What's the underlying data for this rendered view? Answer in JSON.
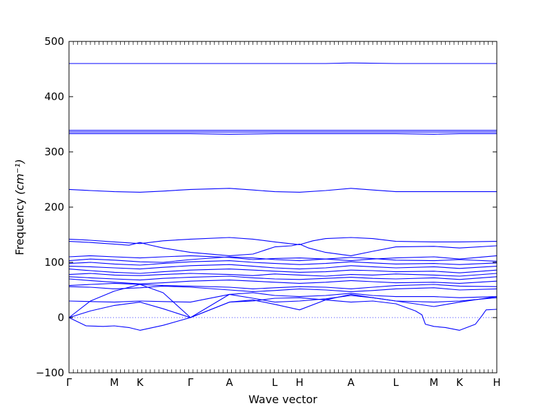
{
  "chart_data": {
    "type": "line",
    "title": "",
    "xlabel": "Wave vector",
    "ylabel": "Frequency",
    "ylabel_unit": "(cm⁻¹)",
    "ylim": [
      -100,
      500
    ],
    "yticks": [
      -100,
      0,
      100,
      200,
      300,
      400,
      500
    ],
    "xlim": [
      0,
      100
    ],
    "high_symmetry_points": [
      {
        "label": "Γ",
        "x": 0
      },
      {
        "label": "M",
        "x": 10.6
      },
      {
        "label": "K",
        "x": 16.6
      },
      {
        "label": "Γ",
        "x": 28.4
      },
      {
        "label": "A",
        "x": 37.5
      },
      {
        "label": "L",
        "x": 48.1
      },
      {
        "label": "H",
        "x": 53.9
      },
      {
        "label": "A",
        "x": 65.9
      },
      {
        "label": "L",
        "x": 76.4
      },
      {
        "label": "M",
        "x": 85.3
      },
      {
        "label": "K",
        "x": 91.3
      },
      {
        "label": "H",
        "x": 100
      }
    ],
    "zero_line": true,
    "line_color": "#0000ff",
    "series": [
      {
        "x": [
          0,
          5,
          10.6,
          16.6,
          22,
          28.4,
          37.5,
          48.1,
          53.9,
          60,
          65.9,
          76.4,
          80,
          82.5,
          85.3,
          91.3,
          95,
          97,
          100
        ],
        "y": [
          460,
          460,
          460,
          460,
          460,
          460,
          460,
          460,
          460,
          460,
          461,
          460,
          460,
          460,
          460,
          460,
          460,
          460,
          460
        ]
      },
      {
        "x": [
          0,
          10.6,
          16.6,
          28.4,
          37.5,
          48.1,
          53.9,
          65.9,
          76.4,
          85.3,
          91.3,
          100
        ],
        "y": [
          339,
          339,
          339,
          339,
          339,
          339,
          339,
          339,
          339,
          339,
          339,
          339
        ]
      },
      {
        "x": [
          0,
          10.6,
          16.6,
          28.4,
          37.5,
          48.1,
          53.9,
          65.9,
          76.4,
          85.3,
          91.3,
          100
        ],
        "y": [
          336,
          336,
          336,
          336,
          336,
          336,
          336,
          336,
          336,
          336,
          336,
          336
        ]
      },
      {
        "x": [
          0,
          10.6,
          16.6,
          28.4,
          37.5,
          48.1,
          53.9,
          65.9,
          76.4,
          85.3,
          91.3,
          100
        ],
        "y": [
          333,
          333,
          333,
          333,
          332,
          333,
          333,
          333,
          333,
          332,
          333,
          333
        ]
      },
      {
        "x": [
          0,
          5,
          10.6,
          16.6,
          22,
          28.4,
          37.5,
          43,
          48.1,
          53.9,
          60,
          65.9,
          71,
          76.4,
          85.3,
          91.3,
          100
        ],
        "y": [
          232,
          230,
          228,
          227,
          229,
          232,
          234,
          231,
          228,
          227,
          230,
          234,
          231,
          228,
          228,
          228,
          228
        ]
      },
      {
        "x": [
          0,
          5,
          10.6,
          16.6,
          22,
          28.4,
          37.5,
          43,
          48.1,
          53.9,
          57,
          60,
          65.9,
          71,
          76.4,
          85.3,
          91.3,
          100
        ],
        "y": [
          142,
          140,
          137,
          134,
          139,
          142,
          145,
          142,
          137,
          132,
          139,
          143,
          145,
          143,
          138,
          137,
          137,
          138
        ]
      },
      {
        "x": [
          0,
          5,
          10.6,
          14,
          16.6,
          18,
          22,
          28.4,
          37.5,
          43,
          48.1,
          52,
          53.9,
          56,
          60,
          65.9,
          71,
          76.4,
          85.3,
          91.3,
          100
        ],
        "y": [
          138,
          136,
          133,
          131,
          136,
          133,
          126,
          118,
          112,
          115,
          128,
          130,
          133,
          126,
          118,
          112,
          120,
          128,
          129,
          126,
          130
        ]
      },
      {
        "x": [
          0,
          5,
          10.6,
          16.6,
          22,
          28.4,
          37.5,
          43,
          48.1,
          53.9,
          60,
          65.9,
          71,
          76.4,
          85.3,
          91.3,
          100
        ],
        "y": [
          110,
          112,
          110,
          108,
          110,
          112,
          109,
          105,
          107,
          108,
          106,
          103,
          106,
          108,
          110,
          106,
          112
        ]
      },
      {
        "x": [
          0,
          5,
          10.6,
          16.6,
          22,
          28.4,
          37.5,
          43,
          48.1,
          53.9,
          60,
          65.9,
          71,
          76.4,
          85.3,
          91.3,
          100
        ],
        "y": [
          103,
          106,
          104,
          101,
          100,
          105,
          110,
          108,
          105,
          103,
          106,
          109,
          107,
          104,
          103,
          105,
          102
        ]
      },
      {
        "x": [
          0,
          5,
          10.6,
          16.6,
          22,
          28.4,
          37.5,
          43,
          48.1,
          53.9,
          60,
          65.9,
          71,
          76.4,
          85.3,
          91.3,
          100
        ],
        "y": [
          98,
          100,
          97,
          95,
          98,
          101,
          103,
          100,
          98,
          96,
          98,
          101,
          99,
          97,
          98,
          96,
          99
        ]
      },
      {
        "x": [
          0,
          5,
          10.6,
          16.6,
          22,
          28.4,
          37.5,
          43,
          48.1,
          53.9,
          60,
          65.9,
          71,
          76.4,
          85.3,
          91.3,
          100
        ],
        "y": [
          93,
          92,
          90,
          88,
          91,
          94,
          96,
          93,
          90,
          88,
          90,
          94,
          92,
          90,
          92,
          89,
          93
        ]
      },
      {
        "x": [
          0,
          5,
          10.6,
          16.6,
          22,
          28.4,
          37.5,
          43,
          48.1,
          53.9,
          60,
          65.9,
          71,
          76.4,
          85.3,
          91.3,
          100
        ],
        "y": [
          88,
          85,
          82,
          80,
          83,
          86,
          88,
          86,
          84,
          82,
          83,
          86,
          85,
          83,
          84,
          81,
          86
        ]
      },
      {
        "x": [
          0,
          5,
          10.6,
          16.6,
          22,
          28.4,
          37.5,
          43,
          48.1,
          53.9,
          60,
          65.9,
          71,
          76.4,
          85.3,
          91.3,
          100
        ],
        "y": [
          78,
          80,
          77,
          76,
          78,
          80,
          78,
          76,
          79,
          77,
          75,
          78,
          77,
          79,
          77,
          75,
          80
        ]
      },
      {
        "x": [
          0,
          5,
          10.6,
          16.6,
          22,
          28.4,
          37.5,
          43,
          48.1,
          53.9,
          60,
          65.9,
          71,
          76.4,
          85.3,
          91.3,
          100
        ],
        "y": [
          74,
          72,
          70,
          68,
          71,
          73,
          75,
          72,
          70,
          69,
          71,
          73,
          71,
          70,
          72,
          69,
          74
        ]
      },
      {
        "x": [
          0,
          5,
          10.6,
          16.6,
          22,
          28.4,
          37.5,
          43,
          48.1,
          53.9,
          60,
          65.9,
          71,
          76.4,
          85.3,
          91.3,
          100
        ],
        "y": [
          70,
          67,
          64,
          61,
          63,
          66,
          68,
          66,
          64,
          62,
          64,
          67,
          65,
          63,
          64,
          62,
          66
        ]
      },
      {
        "x": [
          0,
          5,
          10.6,
          16.6,
          22,
          28.4,
          37.5,
          43,
          48.1,
          53.9,
          60,
          65.9,
          71,
          76.4,
          85.3,
          91.3,
          100
        ],
        "y": [
          58,
          60,
          62,
          60,
          58,
          57,
          55,
          52,
          54,
          56,
          55,
          52,
          55,
          58,
          60,
          57,
          56
        ]
      },
      {
        "x": [
          0,
          5,
          10.6,
          16.6,
          22,
          28.4,
          37.5,
          43,
          48.1,
          53.9,
          60,
          65.9,
          71,
          76.4,
          85.3,
          91.3,
          100
        ],
        "y": [
          56,
          55,
          52,
          54,
          57,
          55,
          50,
          47,
          49,
          52,
          50,
          47,
          49,
          52,
          54,
          50,
          52
        ]
      },
      {
        "x": [
          0,
          5,
          10.6,
          16.6,
          22,
          28.4,
          37.5,
          43,
          48.1,
          53.9,
          60,
          65.9,
          71,
          76.4,
          85.3,
          91.3,
          100
        ],
        "y": [
          30,
          29,
          28,
          30,
          29,
          28,
          42,
          45,
          40,
          38,
          40,
          44,
          40,
          38,
          38,
          36,
          38
        ]
      },
      {
        "x": [
          0,
          5,
          10.6,
          16.6,
          22,
          28.4,
          37.5,
          43,
          48.1,
          53.9,
          60,
          65.9,
          71,
          76.4,
          85.3,
          91.3,
          100
        ],
        "y": [
          0,
          30,
          48,
          60,
          45,
          0,
          42,
          35,
          28,
          30,
          34,
          40,
          36,
          30,
          28,
          30,
          36
        ]
      },
      {
        "x": [
          0,
          5,
          10.6,
          16.6,
          22,
          28.4,
          37.5,
          43,
          48.1,
          53.9,
          60,
          65.9,
          71,
          76.4,
          85.3,
          91.3,
          100
        ],
        "y": [
          0,
          12,
          22,
          28,
          16,
          0,
          28,
          32,
          24,
          14,
          32,
          42,
          36,
          30,
          20,
          28,
          38
        ]
      },
      {
        "x": [
          0,
          4,
          8,
          10.6,
          14,
          16.6,
          22,
          28.4,
          37.5,
          43,
          48.1,
          53.9,
          60,
          65.9,
          71,
          76.4,
          81,
          82.5,
          83.3,
          85.3,
          88,
          91.3,
          95,
          96.5,
          97.5,
          100
        ],
        "y": [
          0,
          -15,
          -16,
          -15,
          -18,
          -23,
          -14,
          0,
          28,
          30,
          35,
          36,
          32,
          28,
          30,
          25,
          12,
          5,
          -12,
          -16,
          -18,
          -23,
          -12,
          3,
          14,
          15
        ]
      }
    ]
  }
}
